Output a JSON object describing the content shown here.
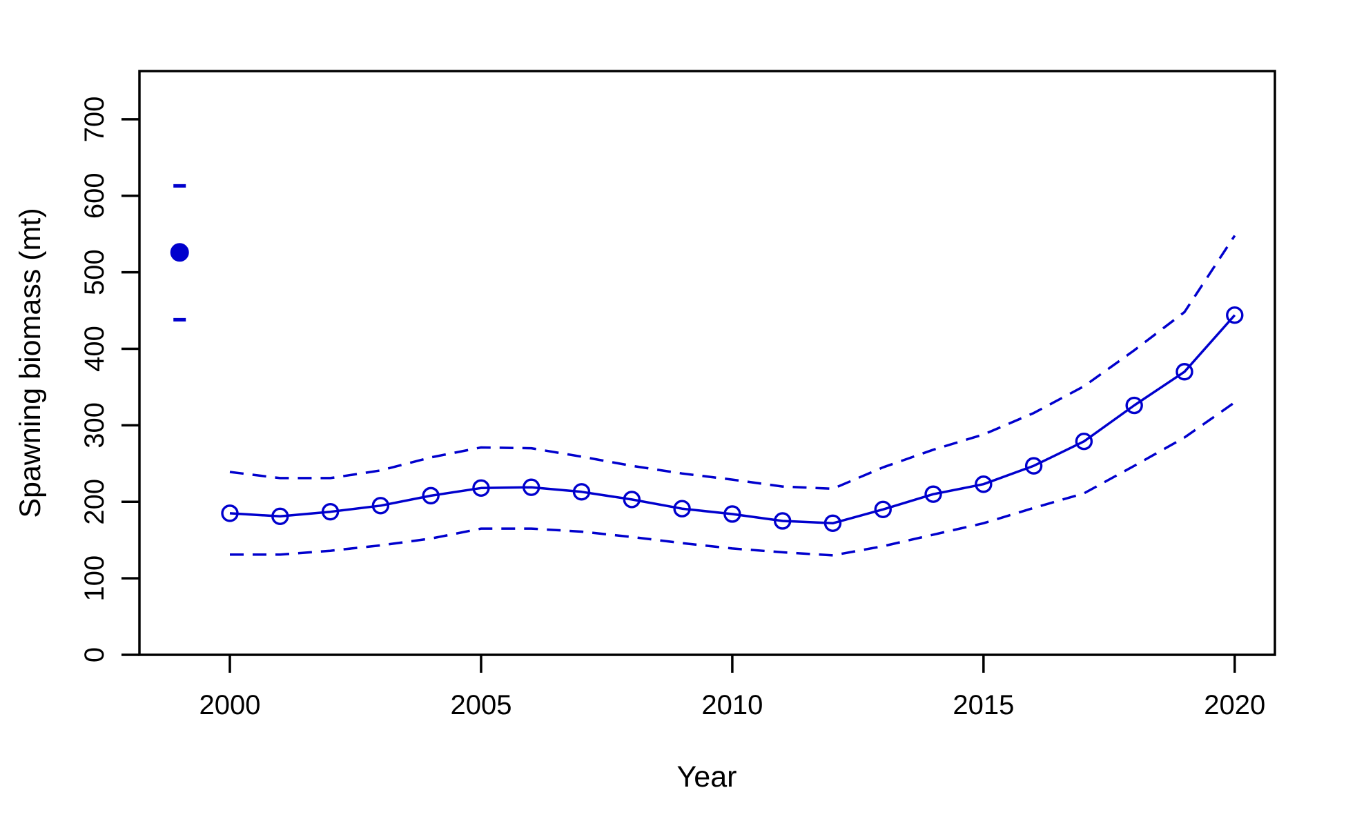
{
  "chart_data": {
    "type": "line",
    "title": "",
    "xlabel": "Year",
    "ylabel": "Spawning biomass (mt)",
    "x_ticks": [
      2000,
      2005,
      2010,
      2015,
      2020
    ],
    "y_ticks": [
      0,
      100,
      200,
      300,
      400,
      500,
      600,
      700
    ],
    "xlim": [
      1998.2,
      2020.8
    ],
    "ylim": [
      0,
      763
    ],
    "grid": false,
    "legend_position": "none",
    "colors": {
      "series": "#0000CD",
      "axis": "#000000",
      "background": "#FFFFFF"
    },
    "x": [
      2000,
      2001,
      2002,
      2003,
      2004,
      2005,
      2006,
      2007,
      2008,
      2009,
      2010,
      2011,
      2012,
      2013,
      2014,
      2015,
      2016,
      2017,
      2018,
      2019,
      2020
    ],
    "series": [
      {
        "name": "spawning-biomass-estimate",
        "style": "solid",
        "marker": "open-circle",
        "values": [
          185,
          181,
          187,
          195,
          208,
          218,
          219,
          213,
          203,
          191,
          184,
          175,
          172,
          190,
          210,
          223,
          247,
          279,
          326,
          370,
          444
        ]
      },
      {
        "name": "upper-confidence-bound",
        "style": "dashed",
        "marker": "none",
        "values": [
          239,
          231,
          231,
          241,
          258,
          271,
          270,
          259,
          247,
          237,
          229,
          220,
          217,
          245,
          268,
          288,
          316,
          351,
          398,
          448,
          548
        ]
      },
      {
        "name": "lower-confidence-bound",
        "style": "dashed",
        "marker": "none",
        "values": [
          131,
          131,
          136,
          143,
          152,
          165,
          165,
          161,
          154,
          146,
          139,
          134,
          130,
          142,
          157,
          172,
          192,
          211,
          247,
          284,
          330
        ]
      }
    ],
    "initial_equilibrium_point": {
      "x": 1999,
      "value": 526,
      "upper": 613,
      "lower": 438,
      "marker": "filled-circle",
      "whisker_marker": "dash"
    }
  }
}
